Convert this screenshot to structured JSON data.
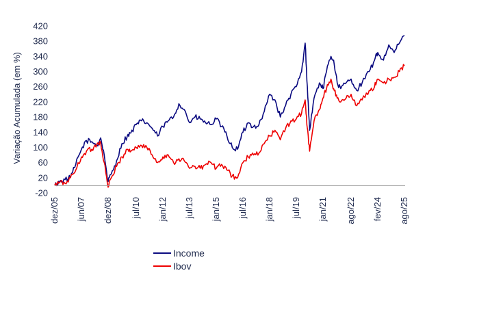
{
  "chart_data": {
    "type": "line",
    "ylabel": "Variação Acumulada (em %)",
    "xlabel": "",
    "ylim": [
      -20,
      420
    ],
    "yticks": [
      "-20",
      "20",
      "60",
      "100",
      "140",
      "180",
      "220",
      "260",
      "300",
      "340",
      "380",
      "420"
    ],
    "xlim": [
      2005.92,
      2025.62
    ],
    "xticks": [
      {
        "label": "dez/05",
        "t": 2005.92
      },
      {
        "label": "jun/07",
        "t": 2007.42
      },
      {
        "label": "dez/08",
        "t": 2008.92
      },
      {
        "label": "jul/10",
        "t": 2010.5
      },
      {
        "label": "jan/12",
        "t": 2012.0
      },
      {
        "label": "jul/13",
        "t": 2013.5
      },
      {
        "label": "jan/15",
        "t": 2015.0
      },
      {
        "label": "jul/16",
        "t": 2016.5
      },
      {
        "label": "jan/18",
        "t": 2018.0
      },
      {
        "label": "jul/19",
        "t": 2019.5
      },
      {
        "label": "jan/21",
        "t": 2021.0
      },
      {
        "label": "ago/22",
        "t": 2022.58
      },
      {
        "label": "fev/24",
        "t": 2024.08
      },
      {
        "label": "ago/25",
        "t": 2025.58
      }
    ],
    "grid": false,
    "legend_position": "bottom-center",
    "series": [
      {
        "name": "Income",
        "color": "#0a0a80",
        "points": [
          [
            2005.92,
            0
          ],
          [
            2006.2,
            10
          ],
          [
            2006.5,
            15
          ],
          [
            2006.8,
            20
          ],
          [
            2007.1,
            55
          ],
          [
            2007.42,
            95
          ],
          [
            2007.7,
            118
          ],
          [
            2008.0,
            115
          ],
          [
            2008.3,
            105
          ],
          [
            2008.5,
            125
          ],
          [
            2008.7,
            80
          ],
          [
            2008.92,
            10
          ],
          [
            2009.1,
            30
          ],
          [
            2009.4,
            65
          ],
          [
            2009.7,
            110
          ],
          [
            2010.0,
            130
          ],
          [
            2010.2,
            138
          ],
          [
            2010.5,
            160
          ],
          [
            2010.8,
            170
          ],
          [
            2011.1,
            165
          ],
          [
            2011.4,
            150
          ],
          [
            2011.7,
            130
          ],
          [
            2012.0,
            155
          ],
          [
            2012.3,
            170
          ],
          [
            2012.6,
            180
          ],
          [
            2012.9,
            215
          ],
          [
            2013.2,
            200
          ],
          [
            2013.5,
            165
          ],
          [
            2013.8,
            180
          ],
          [
            2014.1,
            175
          ],
          [
            2014.4,
            165
          ],
          [
            2014.7,
            160
          ],
          [
            2015.0,
            175
          ],
          [
            2015.3,
            155
          ],
          [
            2015.6,
            130
          ],
          [
            2015.9,
            100
          ],
          [
            2016.2,
            95
          ],
          [
            2016.5,
            140
          ],
          [
            2016.8,
            165
          ],
          [
            2017.1,
            155
          ],
          [
            2017.4,
            160
          ],
          [
            2017.7,
            195
          ],
          [
            2018.0,
            240
          ],
          [
            2018.3,
            225
          ],
          [
            2018.6,
            180
          ],
          [
            2018.9,
            210
          ],
          [
            2019.2,
            240
          ],
          [
            2019.5,
            260
          ],
          [
            2019.8,
            300
          ],
          [
            2020.0,
            375
          ],
          [
            2020.12,
            260
          ],
          [
            2020.25,
            145
          ],
          [
            2020.5,
            230
          ],
          [
            2020.8,
            270
          ],
          [
            2021.0,
            255
          ],
          [
            2021.2,
            300
          ],
          [
            2021.45,
            340
          ],
          [
            2021.6,
            330
          ],
          [
            2021.8,
            270
          ],
          [
            2022.0,
            255
          ],
          [
            2022.3,
            270
          ],
          [
            2022.58,
            280
          ],
          [
            2022.9,
            250
          ],
          [
            2023.2,
            270
          ],
          [
            2023.6,
            300
          ],
          [
            2023.9,
            330
          ],
          [
            2024.08,
            350
          ],
          [
            2024.4,
            330
          ],
          [
            2024.7,
            370
          ],
          [
            2025.0,
            350
          ],
          [
            2025.3,
            375
          ],
          [
            2025.58,
            395
          ]
        ]
      },
      {
        "name": "Ibov",
        "color": "#ee0000",
        "points": [
          [
            2005.92,
            0
          ],
          [
            2006.2,
            8
          ],
          [
            2006.5,
            5
          ],
          [
            2006.8,
            20
          ],
          [
            2007.1,
            40
          ],
          [
            2007.42,
            75
          ],
          [
            2007.7,
            90
          ],
          [
            2008.0,
            95
          ],
          [
            2008.3,
            110
          ],
          [
            2008.5,
            112
          ],
          [
            2008.7,
            60
          ],
          [
            2008.92,
            -5
          ],
          [
            2009.1,
            20
          ],
          [
            2009.4,
            50
          ],
          [
            2009.7,
            75
          ],
          [
            2010.0,
            95
          ],
          [
            2010.2,
            90
          ],
          [
            2010.5,
            100
          ],
          [
            2010.8,
            105
          ],
          [
            2011.1,
            100
          ],
          [
            2011.4,
            80
          ],
          [
            2011.7,
            60
          ],
          [
            2012.0,
            75
          ],
          [
            2012.3,
            80
          ],
          [
            2012.6,
            60
          ],
          [
            2012.9,
            70
          ],
          [
            2013.2,
            65
          ],
          [
            2013.5,
            45
          ],
          [
            2013.8,
            50
          ],
          [
            2014.1,
            45
          ],
          [
            2014.4,
            55
          ],
          [
            2014.7,
            60
          ],
          [
            2015.0,
            45
          ],
          [
            2015.3,
            55
          ],
          [
            2015.6,
            40
          ],
          [
            2015.9,
            25
          ],
          [
            2016.2,
            20
          ],
          [
            2016.5,
            60
          ],
          [
            2016.8,
            75
          ],
          [
            2017.1,
            80
          ],
          [
            2017.4,
            85
          ],
          [
            2017.7,
            110
          ],
          [
            2018.0,
            130
          ],
          [
            2018.3,
            145
          ],
          [
            2018.6,
            120
          ],
          [
            2018.9,
            150
          ],
          [
            2019.2,
            170
          ],
          [
            2019.5,
            175
          ],
          [
            2019.8,
            190
          ],
          [
            2020.0,
            225
          ],
          [
            2020.12,
            150
          ],
          [
            2020.25,
            90
          ],
          [
            2020.5,
            170
          ],
          [
            2020.8,
            200
          ],
          [
            2021.0,
            230
          ],
          [
            2021.2,
            255
          ],
          [
            2021.45,
            280
          ],
          [
            2021.6,
            255
          ],
          [
            2021.8,
            230
          ],
          [
            2022.0,
            220
          ],
          [
            2022.3,
            230
          ],
          [
            2022.58,
            240
          ],
          [
            2022.9,
            210
          ],
          [
            2023.2,
            225
          ],
          [
            2023.6,
            250
          ],
          [
            2023.9,
            260
          ],
          [
            2024.08,
            280
          ],
          [
            2024.4,
            270
          ],
          [
            2024.7,
            280
          ],
          [
            2025.0,
            285
          ],
          [
            2025.3,
            300
          ],
          [
            2025.58,
            315
          ]
        ]
      }
    ]
  }
}
